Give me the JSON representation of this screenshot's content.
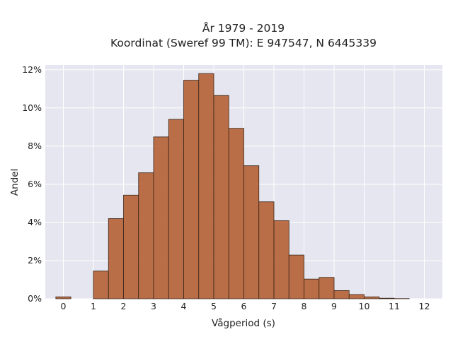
{
  "chart_data": {
    "type": "bar",
    "title_line1": "År 1979 - 2019",
    "title_line2": "Koordinat (Sweref 99 TM): E 947547, N 6445339",
    "xlabel": "Vågperiod (s)",
    "ylabel": "Andel",
    "xlim": [
      -0.6,
      12.6
    ],
    "ylim": [
      0,
      0.1225
    ],
    "x_ticks": [
      "0",
      "1",
      "2",
      "3",
      "4",
      "5",
      "6",
      "7",
      "8",
      "9",
      "10",
      "11",
      "12"
    ],
    "y_ticks": [
      "0%",
      "2%",
      "4%",
      "6%",
      "8%",
      "10%",
      "12%"
    ],
    "bin_width": 0.5,
    "bin_starts": [
      -0.25,
      1.0,
      1.5,
      2.0,
      2.5,
      3.0,
      3.5,
      4.0,
      4.5,
      5.0,
      5.5,
      6.0,
      6.5,
      7.0,
      7.5,
      8.0,
      8.5,
      9.0,
      9.5,
      10.0,
      10.5,
      11.0
    ],
    "values": [
      0.001,
      0.0145,
      0.042,
      0.0543,
      0.066,
      0.0848,
      0.094,
      0.1145,
      0.118,
      0.1065,
      0.0893,
      0.0697,
      0.0508,
      0.0409,
      0.0229,
      0.0103,
      0.0112,
      0.0043,
      0.0022,
      0.001,
      0.0003,
      0.0001
    ],
    "bar_color": "#b5643a",
    "bar_edge_color": "#3a2518",
    "plot_background": "#e5e6ef",
    "grid": true
  }
}
